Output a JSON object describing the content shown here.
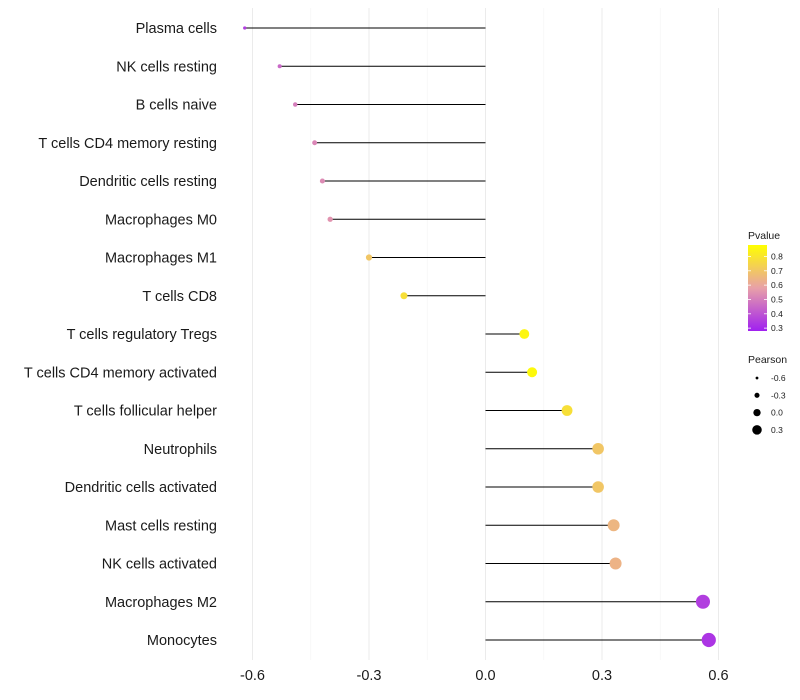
{
  "chart_data": {
    "type": "lollipop",
    "categories": [
      "Plasma cells",
      "NK cells resting",
      "B cells naive",
      "T cells CD4 memory resting",
      "Dendritic cells resting",
      "Macrophages M0",
      "Macrophages M1",
      "T cells CD8",
      "T cells regulatory  Tregs ",
      "T cells CD4 memory activated",
      "T cells follicular helper",
      "Neutrophils",
      "Dendritic cells activated",
      "Mast cells resting",
      "NK cells activated",
      "Macrophages M2",
      "Monocytes"
    ],
    "values": [
      -0.62,
      -0.53,
      -0.49,
      -0.44,
      -0.42,
      -0.4,
      -0.3,
      -0.21,
      0.1,
      0.12,
      0.21,
      0.29,
      0.29,
      0.33,
      0.335,
      0.56,
      0.575
    ],
    "pvalues": [
      0.35,
      0.45,
      0.5,
      0.52,
      0.53,
      0.55,
      0.7,
      0.78,
      0.85,
      0.86,
      0.78,
      0.7,
      0.7,
      0.65,
      0.64,
      0.35,
      0.33
    ],
    "xlim": [
      -0.6,
      0.6
    ],
    "xticks": [
      "-0.6",
      "-0.3",
      "0.0",
      "0.3",
      "0.6"
    ],
    "xtick_values": [
      -0.6,
      -0.3,
      0.0,
      0.3,
      0.6
    ],
    "xlabel": "",
    "ylabel": "",
    "grid": true,
    "color_legend": {
      "title": "Pvalue",
      "ticks": [
        "0.8",
        "0.7",
        "0.6",
        "0.5",
        "0.4",
        "0.3"
      ],
      "tick_values": [
        0.8,
        0.7,
        0.6,
        0.5,
        0.4,
        0.3
      ],
      "range": [
        0.28,
        0.88
      ],
      "colors": [
        "#a020f0",
        "#e8a0a8",
        "#ffff00"
      ]
    },
    "size_legend": {
      "title": "Pearson",
      "labels": [
        "-0.6",
        "-0.3",
        "0.0",
        "0.3"
      ],
      "values": [
        -0.6,
        -0.3,
        0.0,
        0.3
      ]
    },
    "legend_position": "right"
  }
}
